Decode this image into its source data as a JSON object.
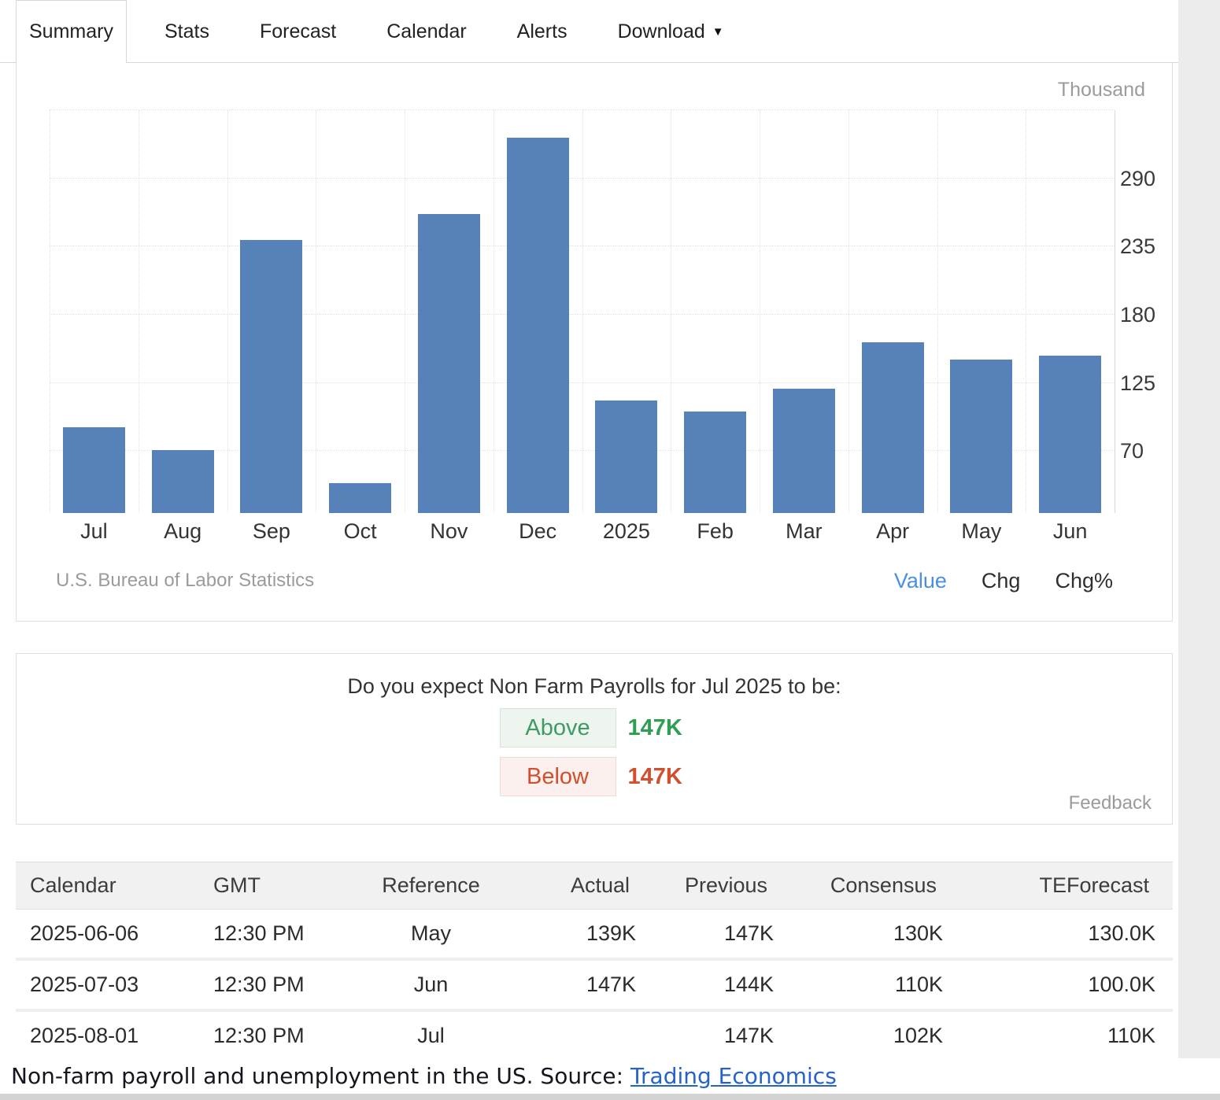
{
  "tabs": {
    "items": [
      {
        "label": "Summary",
        "active": true
      },
      {
        "label": "Stats",
        "active": false
      },
      {
        "label": "Forecast",
        "active": false
      },
      {
        "label": "Calendar",
        "active": false
      },
      {
        "label": "Alerts",
        "active": false
      },
      {
        "label": "Download",
        "active": false,
        "caret": true
      }
    ]
  },
  "chart": {
    "unit_label": "Thousand",
    "source": "U.S. Bureau of Labor Statistics",
    "views": [
      {
        "label": "Value",
        "active": true
      },
      {
        "label": "Chg",
        "active": false
      },
      {
        "label": "Chg%",
        "active": false
      }
    ]
  },
  "chart_data": {
    "type": "bar",
    "categories": [
      "Jul",
      "Aug",
      "Sep",
      "Oct",
      "Nov",
      "Dec",
      "2025",
      "Feb",
      "Mar",
      "Apr",
      "May",
      "Jun"
    ],
    "values": [
      89,
      71,
      240,
      44,
      261,
      323,
      111,
      102,
      120,
      158,
      144,
      147
    ],
    "title": "",
    "xlabel": "",
    "ylabel": "Thousand",
    "ylim": [
      20,
      345
    ],
    "yticks": [
      70,
      125,
      180,
      235,
      290
    ],
    "grid": true,
    "legend": "none"
  },
  "colors": {
    "bar": "#5781b9",
    "active_view": "#4a90e2",
    "link_blue": "#2563c9",
    "above_green": "#3d9c64",
    "below_red": "#d14f2c"
  },
  "poll": {
    "question": "Do you expect Non Farm Payrolls for Jul 2025 to be:",
    "options": [
      {
        "label": "Above",
        "value": "147K",
        "text_color": "#3d9c64",
        "value_color": "#2e9e53",
        "bg_color": "#eef5ef",
        "border_color": "#d9e2d9"
      },
      {
        "label": "Below",
        "value": "147K",
        "text_color": "#d14f2c",
        "value_color": "#d14f2c",
        "bg_color": "#fbf0ed",
        "border_color": "#ecdcd7"
      }
    ],
    "feedback_label": "Feedback"
  },
  "table": {
    "columns": [
      "Calendar",
      "GMT",
      "Reference",
      "Actual",
      "Previous",
      "Consensus",
      "TEForecast"
    ],
    "rows": [
      [
        "2025-06-06",
        "12:30 PM",
        "May",
        "139K",
        "147K",
        "130K",
        "130.0K"
      ],
      [
        "2025-07-03",
        "12:30 PM",
        "Jun",
        "147K",
        "144K",
        "110K",
        "100.0K"
      ],
      [
        "2025-08-01",
        "12:30 PM",
        "Jul",
        "",
        "147K",
        "102K",
        "110K"
      ]
    ]
  },
  "caption": {
    "text": "Non-farm payroll and unemployment in the US. Source:",
    "link_text": "Trading Economics"
  }
}
